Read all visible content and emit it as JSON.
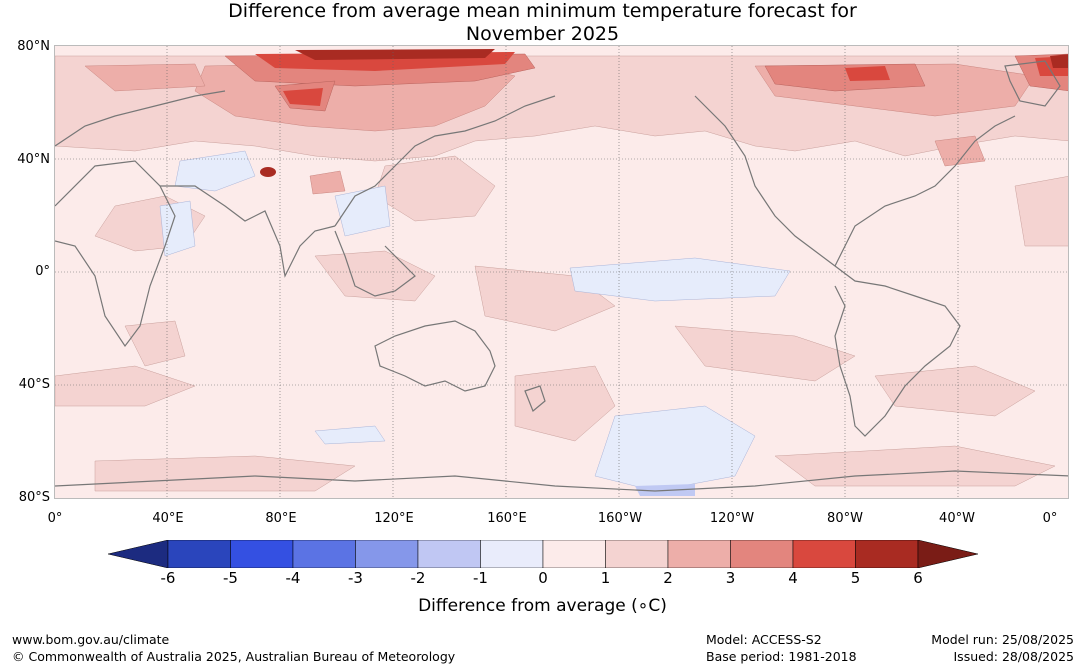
{
  "header": {
    "title_line1": "Difference from average mean minimum temperature forecast for",
    "title_line2": "November 2025"
  },
  "map": {
    "lat_labels": [
      "80°N",
      "40°N",
      "0°",
      "40°S",
      "80°S"
    ],
    "lon_labels": [
      "0°",
      "40°E",
      "80°E",
      "120°E",
      "160°E",
      "160°W",
      "120°W",
      "80°W",
      "40°W",
      "0°"
    ],
    "colors": {
      "ocean_base": "#fcebea",
      "warm1": "#f4d3d1",
      "warm2": "#edaea9",
      "warm3": "#e3857e",
      "warm4": "#d9483e",
      "warm5": "#a92b22",
      "warm6": "#7a1c16",
      "cool1": "#e6ecfb",
      "cool2": "#c0c9f3",
      "coastline": "#777777"
    }
  },
  "legend": {
    "label": "Difference from average (∘C)",
    "ticks": [
      "-6",
      "-5",
      "-4",
      "-3",
      "-2",
      "-1",
      "0",
      "1",
      "2",
      "3",
      "4",
      "5",
      "6"
    ],
    "colors": [
      "#1c2b80",
      "#2a45bc",
      "#3450e2",
      "#5b73e4",
      "#8597ea",
      "#c0c7f3",
      "#e9ecfb",
      "#fcebea",
      "#f4d3d1",
      "#edaea9",
      "#e3857e",
      "#d9483e",
      "#a92b22",
      "#7a1c16"
    ]
  },
  "footer": {
    "site": "www.bom.gov.au/climate",
    "copyright": "© Commonwealth of Australia 2025, Australian Bureau of Meteorology",
    "model": "Model: ACCESS-S2",
    "base_period": "Base period: 1981-2018",
    "model_run": "Model run: 25/08/2025",
    "issued": "Issued: 28/08/2025"
  }
}
